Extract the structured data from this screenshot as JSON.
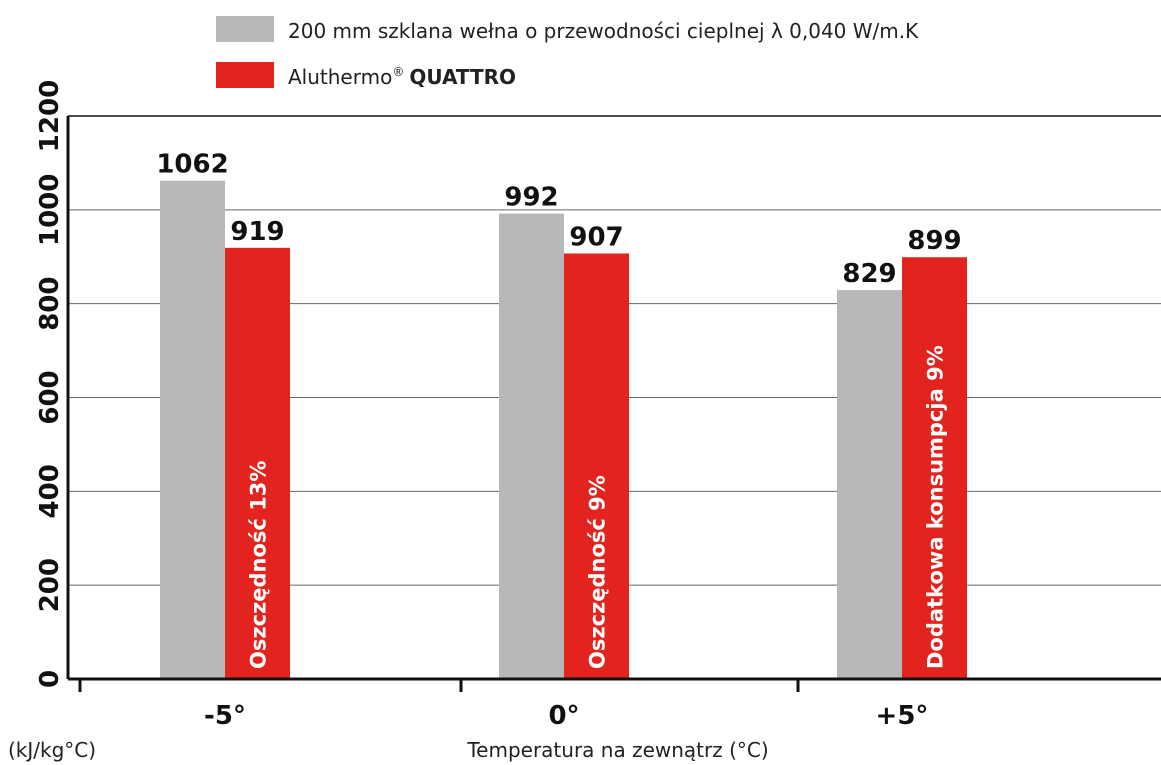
{
  "colors": {
    "insulation": "#b8b8b8",
    "aluthermo": "#e3241e",
    "grid": "#666666",
    "axis": "#111111"
  },
  "chart_data": {
    "type": "bar",
    "xlabel": "Temperatura na zewnątrz (°C)",
    "ylabel": "(kJ/kg°C)",
    "categories": [
      "-5°",
      "0°",
      "+5°"
    ],
    "ylim": [
      0,
      1200
    ],
    "yticks": [
      0,
      200,
      400,
      600,
      800,
      1000,
      1200
    ],
    "grid": true,
    "legend_position": "top",
    "series": [
      {
        "name": "200 mm szklana wełna o przewodności cieplnej λ 0,040 W/m.K",
        "values": [
          1062,
          992,
          829
        ]
      },
      {
        "name": "Aluthermo® QUATTRO",
        "values": [
          919,
          907,
          899
        ]
      }
    ],
    "legend": {
      "item1": "200 mm szklana wełna o przewodności cieplnej λ 0,040 W/m.K",
      "item2_prefix": "Aluthermo",
      "item2_reg": "®",
      "item2_bold": "QUATTRO"
    },
    "bar_labels": [
      "Oszczędność 13%",
      "Oszczędność 9%",
      "Dodatkowa konsumpcja 9%"
    ]
  }
}
